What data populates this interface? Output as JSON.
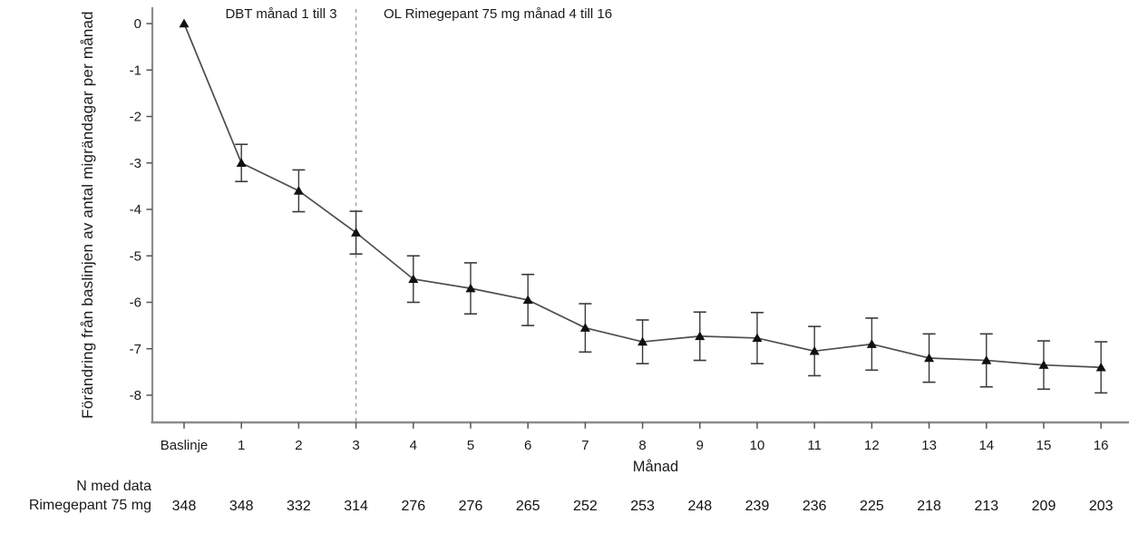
{
  "chart_data": {
    "type": "line",
    "title": "",
    "ylabel": "Förändring från baslinjen av antal migrändagar per månad",
    "xlabel": "Månad",
    "x_categories": [
      "Baslinje",
      "1",
      "2",
      "3",
      "4",
      "5",
      "6",
      "7",
      "8",
      "9",
      "10",
      "11",
      "12",
      "13",
      "14",
      "15",
      "16"
    ],
    "yticks": [
      "0",
      "-1",
      "-2",
      "-3",
      "-4",
      "-5",
      "-6",
      "-7",
      "-8"
    ],
    "ylim": [
      -8.6,
      0.35
    ],
    "grid": false,
    "legend_position": "none",
    "marker": "filled-triangle-up",
    "divider_at_category": "3",
    "phase_labels": {
      "left": "DBT månad 1 till 3",
      "right": "OL Rimegepant 75 mg månad 4 till 16"
    },
    "series": [
      {
        "name": "Rimegepant 75 mg",
        "values": [
          0,
          -3.0,
          -3.6,
          -4.5,
          -5.5,
          -5.7,
          -5.95,
          -6.55,
          -6.85,
          -6.73,
          -6.77,
          -7.05,
          -6.9,
          -7.2,
          -7.25,
          -7.35,
          -7.4
        ],
        "error_bars": [
          null,
          0.4,
          0.45,
          0.46,
          0.5,
          0.55,
          0.55,
          0.52,
          0.47,
          0.52,
          0.55,
          0.53,
          0.56,
          0.52,
          0.57,
          0.52,
          0.55
        ]
      }
    ],
    "colors": {
      "line": "#4d4d4d",
      "marker": "#111111",
      "axis": "#8c8c8c",
      "tick": "#555555",
      "error_bar": "#3a3a3a",
      "divider": "#999999",
      "text": "#1a1a1a"
    }
  },
  "n_table": {
    "header": "N med data",
    "row_label": "Rimegepant 75 mg",
    "values": [
      "348",
      "348",
      "332",
      "314",
      "276",
      "276",
      "265",
      "252",
      "253",
      "248",
      "239",
      "236",
      "225",
      "218",
      "213",
      "209",
      "203"
    ]
  }
}
